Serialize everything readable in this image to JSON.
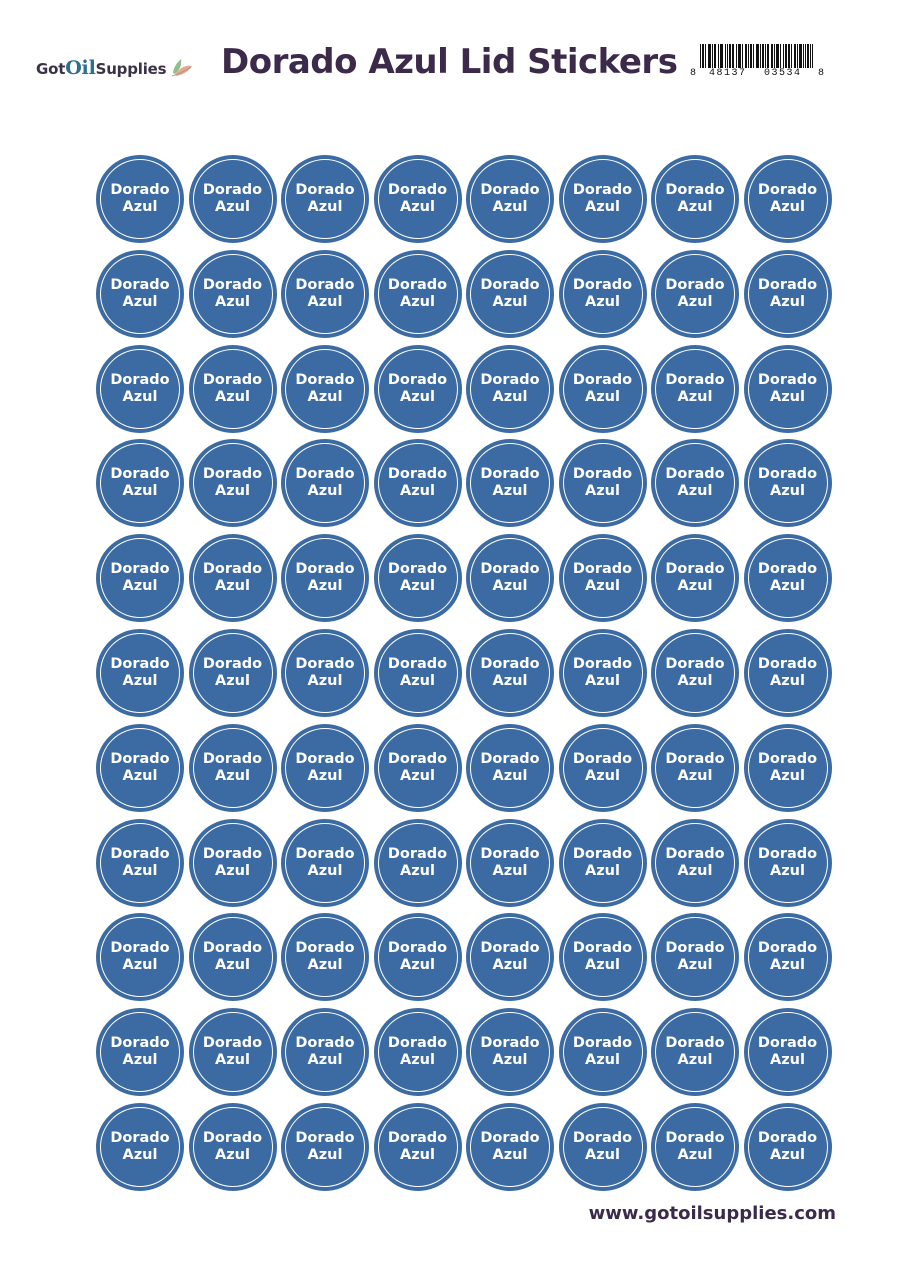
{
  "header": {
    "logo": {
      "part1": "Got",
      "part2": "Oil",
      "part3": "Supplies",
      "icon": "leaf-icon"
    },
    "title": "Dorado Azul Lid Stickers",
    "barcode": {
      "first_digit": "8",
      "group1": "48137",
      "group2": "03534",
      "last_digit": "8"
    }
  },
  "sheet": {
    "rows": 11,
    "columns": 8,
    "sticker_line1": "Dorado",
    "sticker_line2": "Azul",
    "sticker_color": "#3b6ba2",
    "ring_color": "#ffffff"
  },
  "footer": {
    "url": "www.gotoilsupplies.com"
  }
}
